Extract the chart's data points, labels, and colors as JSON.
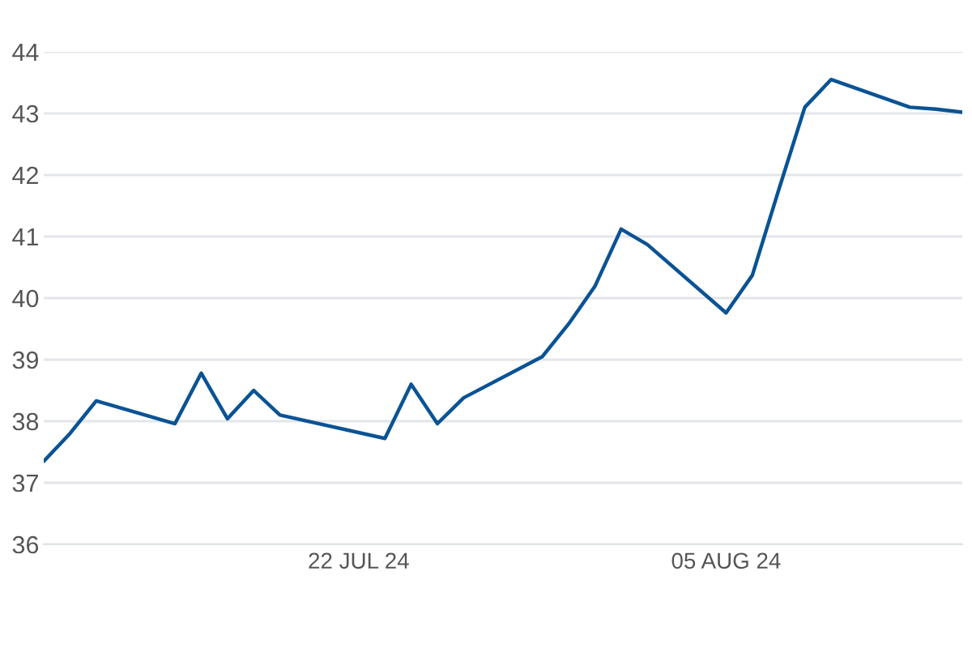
{
  "chart_data": {
    "type": "line",
    "x": [
      "2024-07-10",
      "2024-07-11",
      "2024-07-12",
      "2024-07-15",
      "2024-07-16",
      "2024-07-17",
      "2024-07-18",
      "2024-07-19",
      "2024-07-23",
      "2024-07-24",
      "2024-07-25",
      "2024-07-26",
      "2024-07-29",
      "2024-07-30",
      "2024-07-31",
      "2024-08-01",
      "2024-08-02",
      "2024-08-05",
      "2024-08-06",
      "2024-08-07",
      "2024-08-08",
      "2024-08-09",
      "2024-08-12",
      "2024-08-13",
      "2024-08-14"
    ],
    "series": [
      {
        "color": "#0a5394",
        "values": [
          37.35,
          37.8,
          38.33,
          37.96,
          38.78,
          38.04,
          38.5,
          38.1,
          37.72,
          38.6,
          37.96,
          38.38,
          39.05,
          39.58,
          40.19,
          41.12,
          40.87,
          39.76,
          40.37,
          41.75,
          43.1,
          43.55,
          43.1,
          43.07,
          43.02
        ]
      }
    ],
    "xlim": [
      "2024-07-10",
      "2024-08-14"
    ],
    "xticks": [
      {
        "value": "2024-07-22",
        "label": "22 JUL 24"
      },
      {
        "value": "2024-08-05",
        "label": "05 AUG 24"
      }
    ],
    "ylim": [
      36,
      44
    ],
    "yticks": [
      36,
      37,
      38,
      39,
      40,
      41,
      42,
      43,
      44
    ],
    "grid": "y",
    "legend": false,
    "marker": "none",
    "line_style": "solid"
  }
}
